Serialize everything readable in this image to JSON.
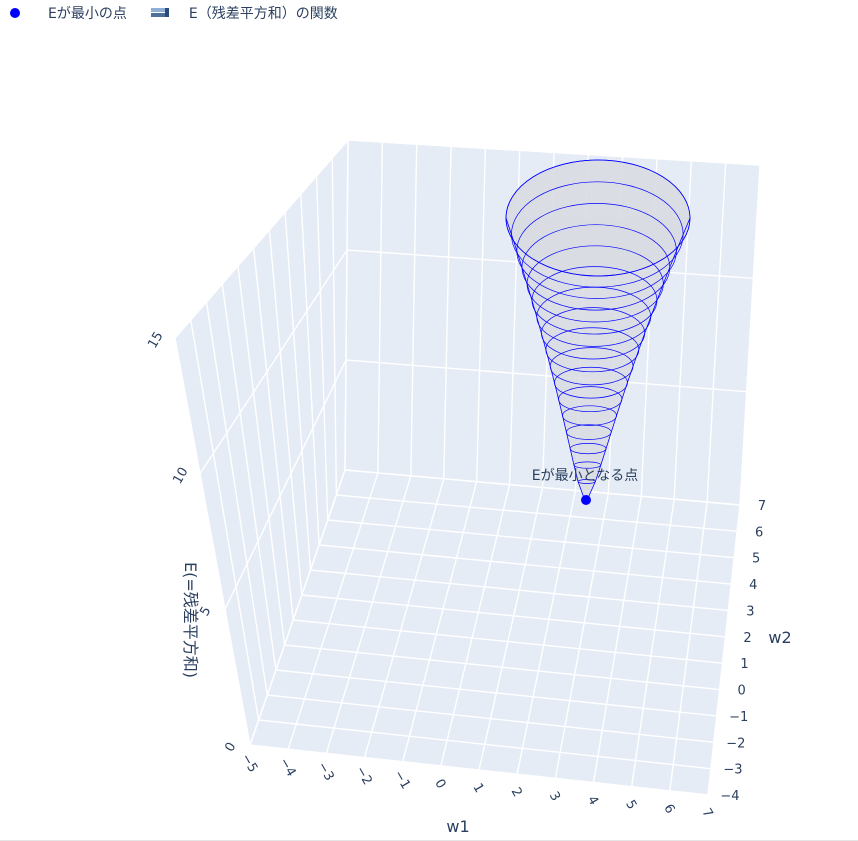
{
  "legend": {
    "items": [
      {
        "label": "Eが最小の点",
        "color": "#0000ff"
      },
      {
        "label": "E（残差平方和）の関数",
        "color": "#6f8fb4"
      }
    ]
  },
  "chart_data": {
    "type": "scatter",
    "title": "",
    "xlabel": "w1",
    "ylabel": "w2",
    "zlabel": "E(=残差平方和)",
    "xlim": [
      -5,
      7
    ],
    "ylim": [
      -4,
      7
    ],
    "zlim": [
      0,
      15
    ],
    "x_ticks": [
      "−5",
      "−4",
      "−3",
      "−2",
      "−1",
      "0",
      "1",
      "2",
      "3",
      "4",
      "5",
      "6",
      "7"
    ],
    "y_ticks": [
      "−4",
      "−3",
      "−2",
      "−1",
      "0",
      "1",
      "2",
      "3",
      "4",
      "5",
      "6",
      "7"
    ],
    "z_ticks": [
      "0",
      "5",
      "10",
      "15"
    ],
    "surface": {
      "name": "E（残差平方和）の関数",
      "shape": "paraboloid",
      "min_value": 0,
      "contour_color": "#0000ff",
      "fill_color": "#d9dce2"
    },
    "series": [
      {
        "name": "Eが最小の点",
        "color": "#0000ff",
        "points": [
          {
            "w1": 4,
            "w2": 3,
            "E": 0
          }
        ]
      }
    ],
    "annotation": {
      "text": "Eが最小となる点"
    },
    "grid": true,
    "legend_position": "top-left"
  }
}
